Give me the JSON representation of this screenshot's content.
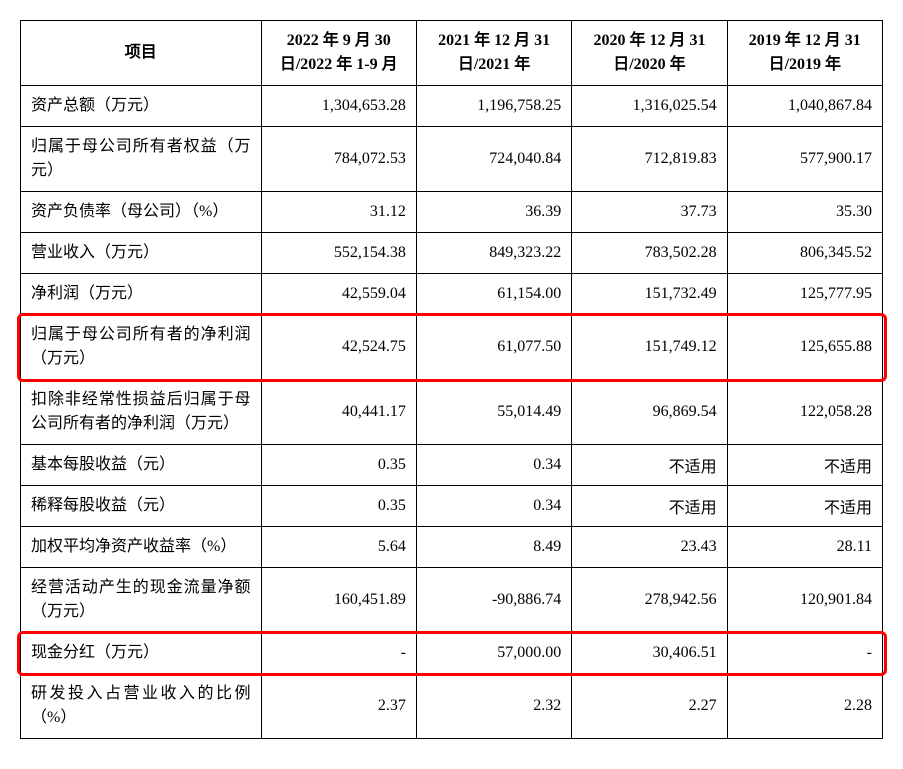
{
  "table": {
    "header": {
      "col0": "项目",
      "col1": "2022 年 9 月 30 日/2022 年 1-9 月",
      "col2": "2021 年 12 月 31 日/2021 年",
      "col3": "2020 年 12 月 31 日/2020 年",
      "col4": "2019 年 12 月 31 日/2019 年"
    },
    "rows": [
      {
        "label": "资产总额（万元）",
        "values": [
          "1,304,653.28",
          "1,196,758.25",
          "1,316,025.54",
          "1,040,867.84"
        ]
      },
      {
        "label": "归属于母公司所有者权益（万元）",
        "values": [
          "784,072.53",
          "724,040.84",
          "712,819.83",
          "577,900.17"
        ]
      },
      {
        "label": "资产负债率（母公司）（%）",
        "values": [
          "31.12",
          "36.39",
          "37.73",
          "35.30"
        ]
      },
      {
        "label": "营业收入（万元）",
        "values": [
          "552,154.38",
          "849,323.22",
          "783,502.28",
          "806,345.52"
        ]
      },
      {
        "label": "净利润（万元）",
        "values": [
          "42,559.04",
          "61,154.00",
          "151,732.49",
          "125,777.95"
        ]
      },
      {
        "label": "归属于母公司所有者的净利润（万元）",
        "values": [
          "42,524.75",
          "61,077.50",
          "151,749.12",
          "125,655.88"
        ]
      },
      {
        "label": "扣除非经常性损益后归属于母公司所有者的净利润（万元）",
        "values": [
          "40,441.17",
          "55,014.49",
          "96,869.54",
          "122,058.28"
        ]
      },
      {
        "label": "基本每股收益（元）",
        "values": [
          "0.35",
          "0.34",
          "不适用",
          "不适用"
        ]
      },
      {
        "label": "稀释每股收益（元）",
        "values": [
          "0.35",
          "0.34",
          "不适用",
          "不适用"
        ]
      },
      {
        "label": "加权平均净资产收益率（%）",
        "values": [
          "5.64",
          "8.49",
          "23.43",
          "28.11"
        ]
      },
      {
        "label": "经营活动产生的现金流量净额（万元）",
        "values": [
          "160,451.89",
          "-90,886.74",
          "278,942.56",
          "120,901.84"
        ]
      },
      {
        "label": "现金分红（万元）",
        "values": [
          "-",
          "57,000.00",
          "30,406.51",
          "-"
        ]
      },
      {
        "label": "研发投入占营业收入的比例（%）",
        "values": [
          "2.37",
          "2.32",
          "2.27",
          "2.28"
        ]
      }
    ],
    "highlight_rows": [
      5,
      11
    ],
    "styling": {
      "border_color": "#000000",
      "highlight_color": "#ff0000",
      "background_color": "#ffffff",
      "font_size": 16,
      "header_font_weight": "bold",
      "label_col_width": 240,
      "value_col_width": 155
    }
  }
}
